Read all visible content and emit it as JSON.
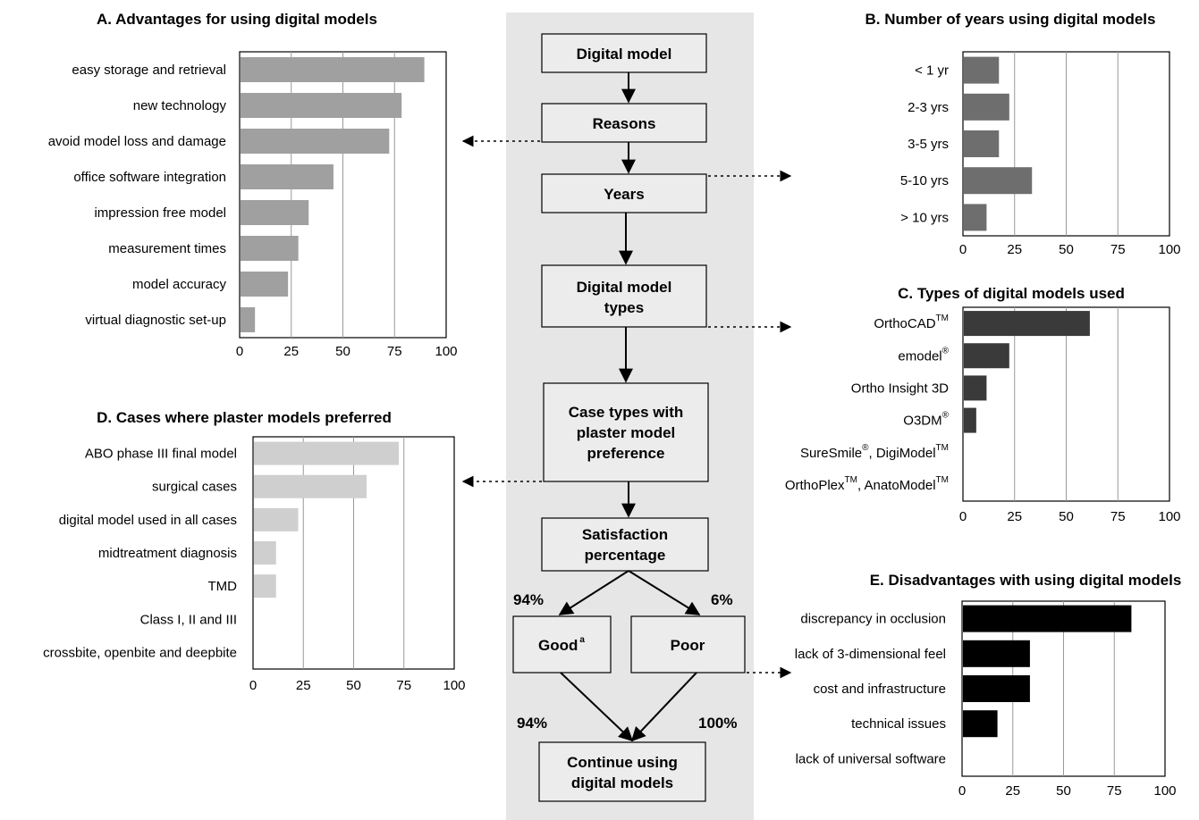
{
  "flowchart": {
    "nodes": {
      "digital_model": [
        "Digital model"
      ],
      "reasons": [
        "Reasons"
      ],
      "years": [
        "Years"
      ],
      "types": [
        "Digital model",
        "types"
      ],
      "case_types": [
        "Case types with",
        "plaster model",
        "preference"
      ],
      "satisfaction": [
        "Satisfaction",
        "percentage"
      ],
      "good": "Good",
      "good_sup": "a",
      "poor": "Poor",
      "continue": [
        "Continue using",
        "digital models"
      ]
    },
    "percentages": {
      "good_split": "94%",
      "poor_split": "6%",
      "good_continue": "94%",
      "poor_continue": "100%"
    }
  },
  "chart_data": [
    {
      "id": "A",
      "type": "bar",
      "orientation": "horizontal",
      "title": "A. Advantages for using digital models",
      "categories": [
        "easy storage and retrieval",
        "new technology",
        "avoid model loss and damage",
        "office software integration",
        "impression free model",
        "measurement times",
        "model accuracy",
        "virtual diagnostic set-up"
      ],
      "values": [
        89,
        78,
        72,
        45,
        33,
        28,
        23,
        7
      ],
      "xlim": [
        0,
        100
      ],
      "xticks": [
        "0",
        "25",
        "50",
        "75",
        "100"
      ],
      "color": "#a0a0a0",
      "grid": true
    },
    {
      "id": "B",
      "type": "bar",
      "orientation": "horizontal",
      "title": "B. Number of years using digital models",
      "categories": [
        "< 1 yr",
        "2-3 yrs",
        "3-5 yrs",
        "5-10 yrs",
        "> 10 yrs"
      ],
      "values": [
        17,
        22,
        17,
        33,
        11
      ],
      "xlim": [
        0,
        100
      ],
      "xticks": [
        "0",
        "25",
        "50",
        "75",
        "100"
      ],
      "color": "#6e6e6e",
      "grid": true
    },
    {
      "id": "C",
      "type": "bar",
      "orientation": "horizontal",
      "title": "C. Types of digital models used",
      "categories": [
        {
          "text": "OrthoCAD",
          "sup": "TM"
        },
        {
          "text": "emodel",
          "sup": "®"
        },
        {
          "text": "Ortho Insight 3D",
          "sup": ""
        },
        {
          "text": "O3DM",
          "sup": "®"
        },
        {
          "text": "SureSmile",
          "sup": "®",
          "text2": ", DigiModel",
          "sup2": "TM"
        },
        {
          "text": "OrthoPlex",
          "sup": "TM",
          "text2": ", AnatoModel",
          "sup2": "TM"
        }
      ],
      "values": [
        61,
        22,
        11,
        6,
        0,
        0
      ],
      "xlim": [
        0,
        100
      ],
      "xticks": [
        "0",
        "25",
        "50",
        "75",
        "100"
      ],
      "color": "#3a3a3a",
      "grid": true
    },
    {
      "id": "D",
      "type": "bar",
      "orientation": "horizontal",
      "title": "D. Cases where plaster models preferred",
      "categories": [
        "ABO phase III final model",
        "surgical cases",
        "digital model used in all cases",
        "midtreatment diagnosis",
        "TMD",
        "Class I, II and III",
        "crossbite, openbite and deepbite"
      ],
      "values": [
        72,
        56,
        22,
        11,
        11,
        0,
        0
      ],
      "xlim": [
        0,
        100
      ],
      "xticks": [
        "0",
        "25",
        "50",
        "75",
        "100"
      ],
      "color": "#cfcfcf",
      "grid": true
    },
    {
      "id": "E",
      "type": "bar",
      "orientation": "horizontal",
      "title": "E. Disadvantages with using digital models",
      "categories": [
        "discrepancy in occlusion",
        "lack of 3-dimensional feel",
        "cost and infrastructure",
        "technical issues",
        "lack of universal software"
      ],
      "values": [
        83,
        33,
        33,
        17,
        0
      ],
      "xlim": [
        0,
        100
      ],
      "xticks": [
        "0",
        "25",
        "50",
        "75",
        "100"
      ],
      "color": "#000000",
      "grid": true
    }
  ]
}
